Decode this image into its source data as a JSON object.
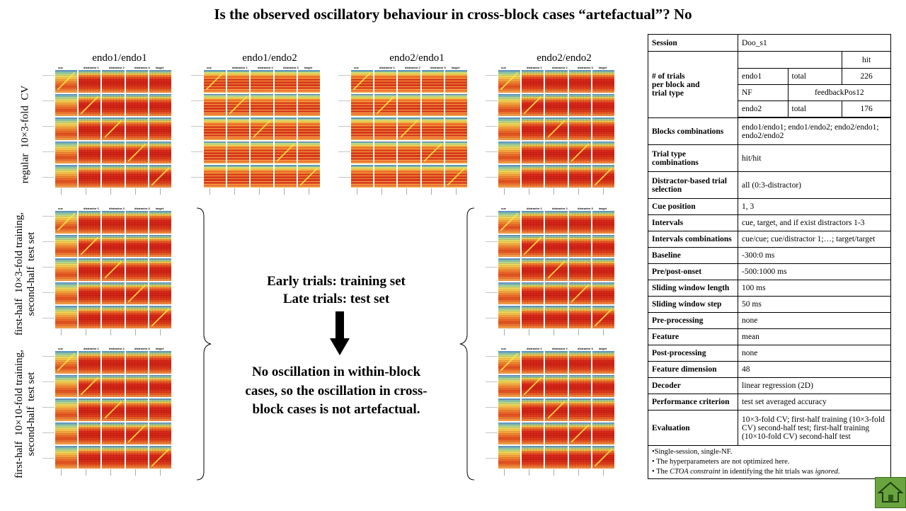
{
  "title": "Is the observed oscillatory behaviour in cross-block cases “artefactual”? No",
  "columns": [
    "endo1/endo1",
    "endo1/endo2",
    "endo2/endo1",
    "endo2/endo2"
  ],
  "row_labels": {
    "regular": "regular  10×3-fold  CV",
    "first_half_3": "first-half  10×3-fold training,\nsecond-half  test set",
    "first_half_10": "first-half  10×10-fold training,\nsecond-half  test set"
  },
  "panel": {
    "headers": [
      "cue",
      "distractor 1",
      "distractor 2",
      "distractor 3",
      "target"
    ]
  },
  "center": {
    "line1": "Early trials:  training  set",
    "line2": "Late trials:  test set",
    "conclusion1": "No oscillation  in  within-block",
    "conclusion2": "cases, so the oscillation  in  cross-",
    "conclusion3": "block cases is not artefactual."
  },
  "table": {
    "session_label": "Session",
    "session_value": "Doo_s1",
    "trials_label": "# of trials\nper block and\ntrial type",
    "trial_type": "hit",
    "endo1": "endo1",
    "total": "total",
    "endo1_total": "226",
    "nf": "NF",
    "nf_value": "feedbackPos12",
    "endo2": "endo2",
    "endo2_total": "176",
    "blocks_label": "Blocks combinations",
    "blocks_value": "endo1/endo1;  endo1/endo2;  endo2/endo1;  endo2/endo2",
    "trialtype_label": "Trial type combinations",
    "trialtype_value": "hit/hit",
    "distractor_label": "Distractor-based trial selection",
    "distractor_value": "all  (0:3-distractor)",
    "cue_label": "Cue position",
    "cue_value": "1, 3",
    "intervals_label": "Intervals",
    "intervals_value": "cue,  target,  and if exist distractors 1-3",
    "intcomb_label": "Intervals combinations",
    "intcomb_value": "cue/cue;  cue/distractor 1;…;  target/target",
    "baseline_label": "Baseline",
    "baseline_value": "-300:0 ms",
    "prepost_label": "Pre/post-onset",
    "prepost_value": "-500:1000 ms",
    "swl_label": "Sliding window length",
    "swl_value": "100 ms",
    "sws_label": "Sliding window step",
    "sws_value": "50 ms",
    "prep_label": "Pre-processing",
    "prep_value": "none",
    "feature_label": "Feature",
    "feature_value": "mean",
    "postp_label": "Post-processing",
    "postp_value": "none",
    "fdim_label": "Feature dimension",
    "fdim_value": "48",
    "decoder_label": "Decoder",
    "decoder_value": "linear regression  (2D)",
    "perf_label": "Performance criterion",
    "perf_value": "test set averaged  accuracy",
    "eval_label": "Evaluation",
    "eval_value": "10×3-fold CV;  first-half  training  (10×3-fold CV)  second-half  test;  first-half  training  (10×10-fold CV)  second-half  test",
    "note1": "•Single-session,  single-NF.",
    "note2": "• The hyperparameters are not optimized here.",
    "note3_pre": "•  The ",
    "note3_em1": "CTOA constraint",
    "note3_mid": " in identifying the hit trials was ",
    "note3_em2": "ignored",
    "note3_post": "."
  },
  "icons": {
    "home": "home-icon"
  },
  "colors": {
    "home_button": "#6aa43f"
  }
}
